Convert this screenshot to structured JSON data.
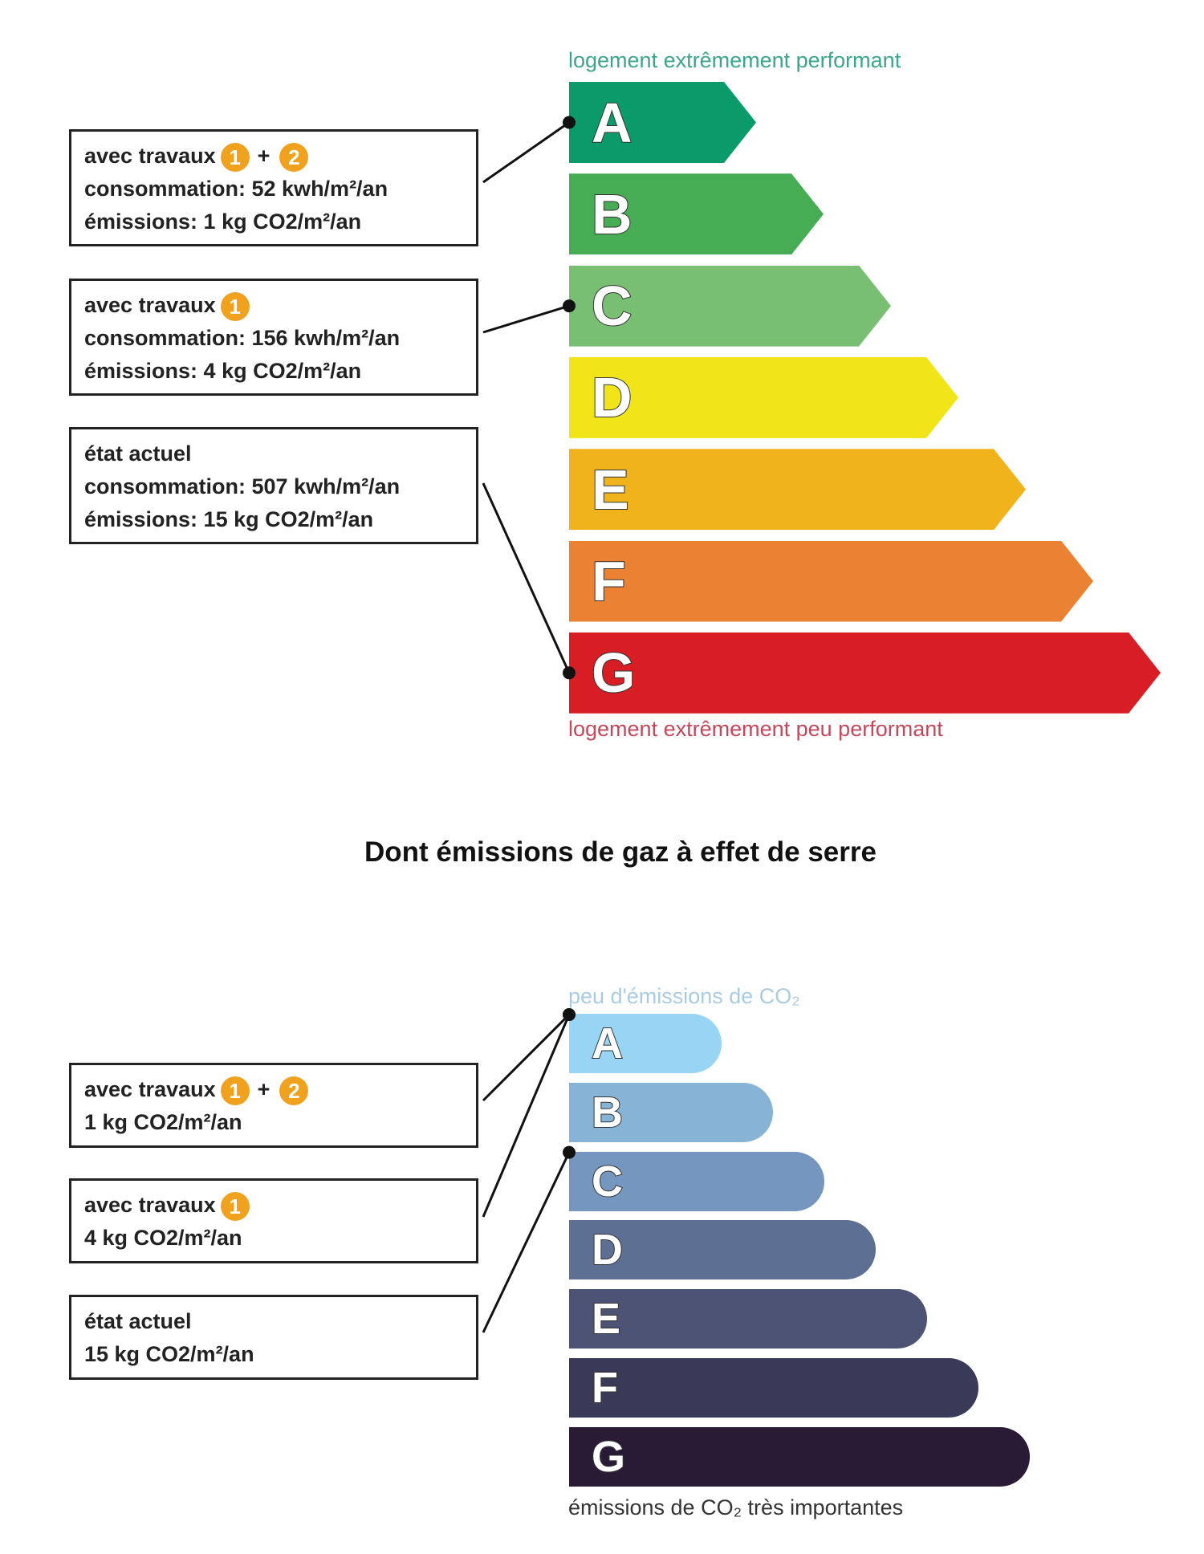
{
  "energy": {
    "top_label": "logement extrêmement performant",
    "bottom_label": "logement extrêmement peu performant",
    "classes": [
      {
        "letter": "A",
        "color": "#0b9b6b"
      },
      {
        "letter": "B",
        "color": "#47ad55"
      },
      {
        "letter": "C",
        "color": "#79bf73"
      },
      {
        "letter": "D",
        "color": "#f1e51a"
      },
      {
        "letter": "E",
        "color": "#f0b31c"
      },
      {
        "letter": "F",
        "color": "#eb8233"
      },
      {
        "letter": "G",
        "color": "#d81e24"
      }
    ],
    "boxes": [
      {
        "title": "avec travaux",
        "badges": [
          "1",
          "2"
        ],
        "plus": "+",
        "line1": "consommation: 52 kwh/m²/an",
        "line2": "émissions: 1 kg CO2/m²/an",
        "class": "A"
      },
      {
        "title": "avec travaux",
        "badges": [
          "1"
        ],
        "line1": "consommation: 156 kwh/m²/an",
        "line2": "émissions: 4 kg CO2/m²/an",
        "class": "C"
      },
      {
        "title": "état actuel",
        "line1": "consommation:   507 kwh/m²/an",
        "line2": "émissions: 15 kg CO2/m²/an",
        "class": "G"
      }
    ]
  },
  "ges": {
    "title": "Dont émissions de gaz à effet de serre",
    "top_label": "peu d'émissions de CO₂",
    "bottom_label": "émissions de CO₂ très importantes",
    "classes": [
      {
        "letter": "A",
        "color": "#98d5f5"
      },
      {
        "letter": "B",
        "color": "#87b3d7"
      },
      {
        "letter": "C",
        "color": "#7596be"
      },
      {
        "letter": "D",
        "color": "#5d7094"
      },
      {
        "letter": "E",
        "color": "#4d5374"
      },
      {
        "letter": "F",
        "color": "#393a58"
      },
      {
        "letter": "G",
        "color": "#291b36"
      }
    ],
    "boxes": [
      {
        "title": "avec travaux",
        "badges": [
          "1",
          "2"
        ],
        "plus": "+",
        "line1": "1 kg CO2/m²/an",
        "class": "A"
      },
      {
        "title": "avec travaux",
        "badges": [
          "1"
        ],
        "line1": "4 kg CO2/m²/an",
        "class": "A"
      },
      {
        "title": "état actuel",
        "line1": "15 kg CO2/m²/an",
        "class": "C"
      }
    ]
  },
  "colors": {
    "energy_top_label": "#3ba68b",
    "energy_bottom_label": "#c4485c",
    "ges_top_label": "#a9cce1",
    "ges_bottom_label": "#333333",
    "badge": "#f0a21f"
  }
}
